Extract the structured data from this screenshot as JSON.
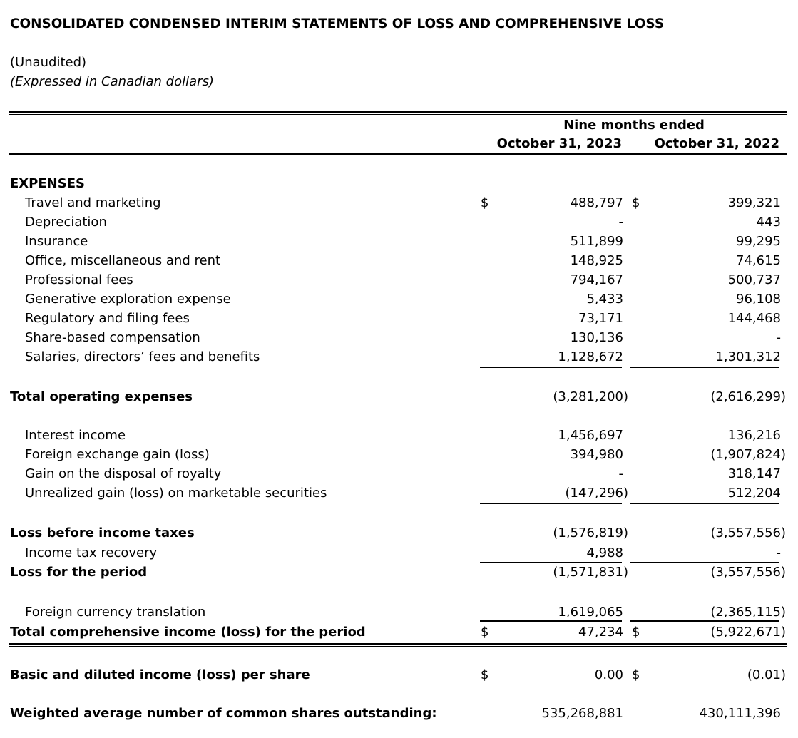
{
  "document": {
    "title": "CONSOLIDATED CONDENSED INTERIM STATEMENTS OF LOSS AND COMPREHENSIVE LOSS",
    "unaudited": "(Unaudited)",
    "currency_note": "(Expressed in Canadian dollars)",
    "period_header": "Nine months ended",
    "columns": [
      "October 31, 2023",
      "October 31, 2022"
    ],
    "currency_symbol": "$"
  },
  "rows": [
    {
      "label": "EXPENSES",
      "kind": "heading"
    },
    {
      "label": "Travel and marketing",
      "kind": "item",
      "c1": "488,797",
      "c2": "399,321",
      "dollar": true
    },
    {
      "label": "Depreciation",
      "kind": "item",
      "c1": "-",
      "c2": "443"
    },
    {
      "label": "Insurance",
      "kind": "item",
      "c1": "511,899",
      "c2": "99,295"
    },
    {
      "label": "Office, miscellaneous and rent",
      "kind": "item",
      "c1": "148,925",
      "c2": "74,615"
    },
    {
      "label": "Professional fees",
      "kind": "item",
      "c1": "794,167",
      "c2": "500,737"
    },
    {
      "label": "Generative exploration expense",
      "kind": "item",
      "c1": "5,433",
      "c2": "96,108"
    },
    {
      "label": "Regulatory and filing fees",
      "kind": "item",
      "c1": "73,171",
      "c2": "144,468"
    },
    {
      "label": "Share-based compensation",
      "kind": "item",
      "c1": "130,136",
      "c2": "-"
    },
    {
      "label": "Salaries, directors’ fees and benefits",
      "kind": "item",
      "c1": "1,128,672",
      "c2": "1,301,312"
    },
    {
      "label": "Total operating expenses",
      "kind": "total",
      "c1": "(3,281,200)",
      "c2": "(2,616,299)"
    },
    {
      "label": "Interest income",
      "kind": "item",
      "c1": "1,456,697",
      "c2": "136,216"
    },
    {
      "label": "Foreign exchange gain (loss)",
      "kind": "item",
      "c1": "394,980",
      "c2": "(1,907,824)"
    },
    {
      "label": "Gain on the disposal of royalty",
      "kind": "item",
      "c1": "-",
      "c2": "318,147"
    },
    {
      "label": "Unrealized gain (loss) on marketable securities",
      "kind": "item",
      "c1": "(147,296)",
      "c2": "512,204"
    },
    {
      "label": "Loss before income taxes",
      "kind": "total",
      "c1": "(1,576,819)",
      "c2": "(3,557,556)"
    },
    {
      "label": "Income tax recovery",
      "kind": "item",
      "c1": "4,988",
      "c2": "-"
    },
    {
      "label": "Loss for the period",
      "kind": "total",
      "c1": "(1,571,831)",
      "c2": "(3,557,556)"
    },
    {
      "label": "Foreign currency translation",
      "kind": "item",
      "c1": "1,619,065",
      "c2": "(2,365,115)"
    },
    {
      "label": "Total comprehensive income (loss) for the period",
      "kind": "total",
      "c1": "47,234",
      "c2": "(5,922,671)",
      "dollar": true
    },
    {
      "label": "Basic and diluted income (loss) per share",
      "kind": "total",
      "c1": "0.00",
      "c2": "(0.01)",
      "dollar": true
    },
    {
      "label": "Weighted average number of common shares outstanding:",
      "kind": "total",
      "c1": "535,268,881",
      "c2": "430,111,396"
    }
  ]
}
